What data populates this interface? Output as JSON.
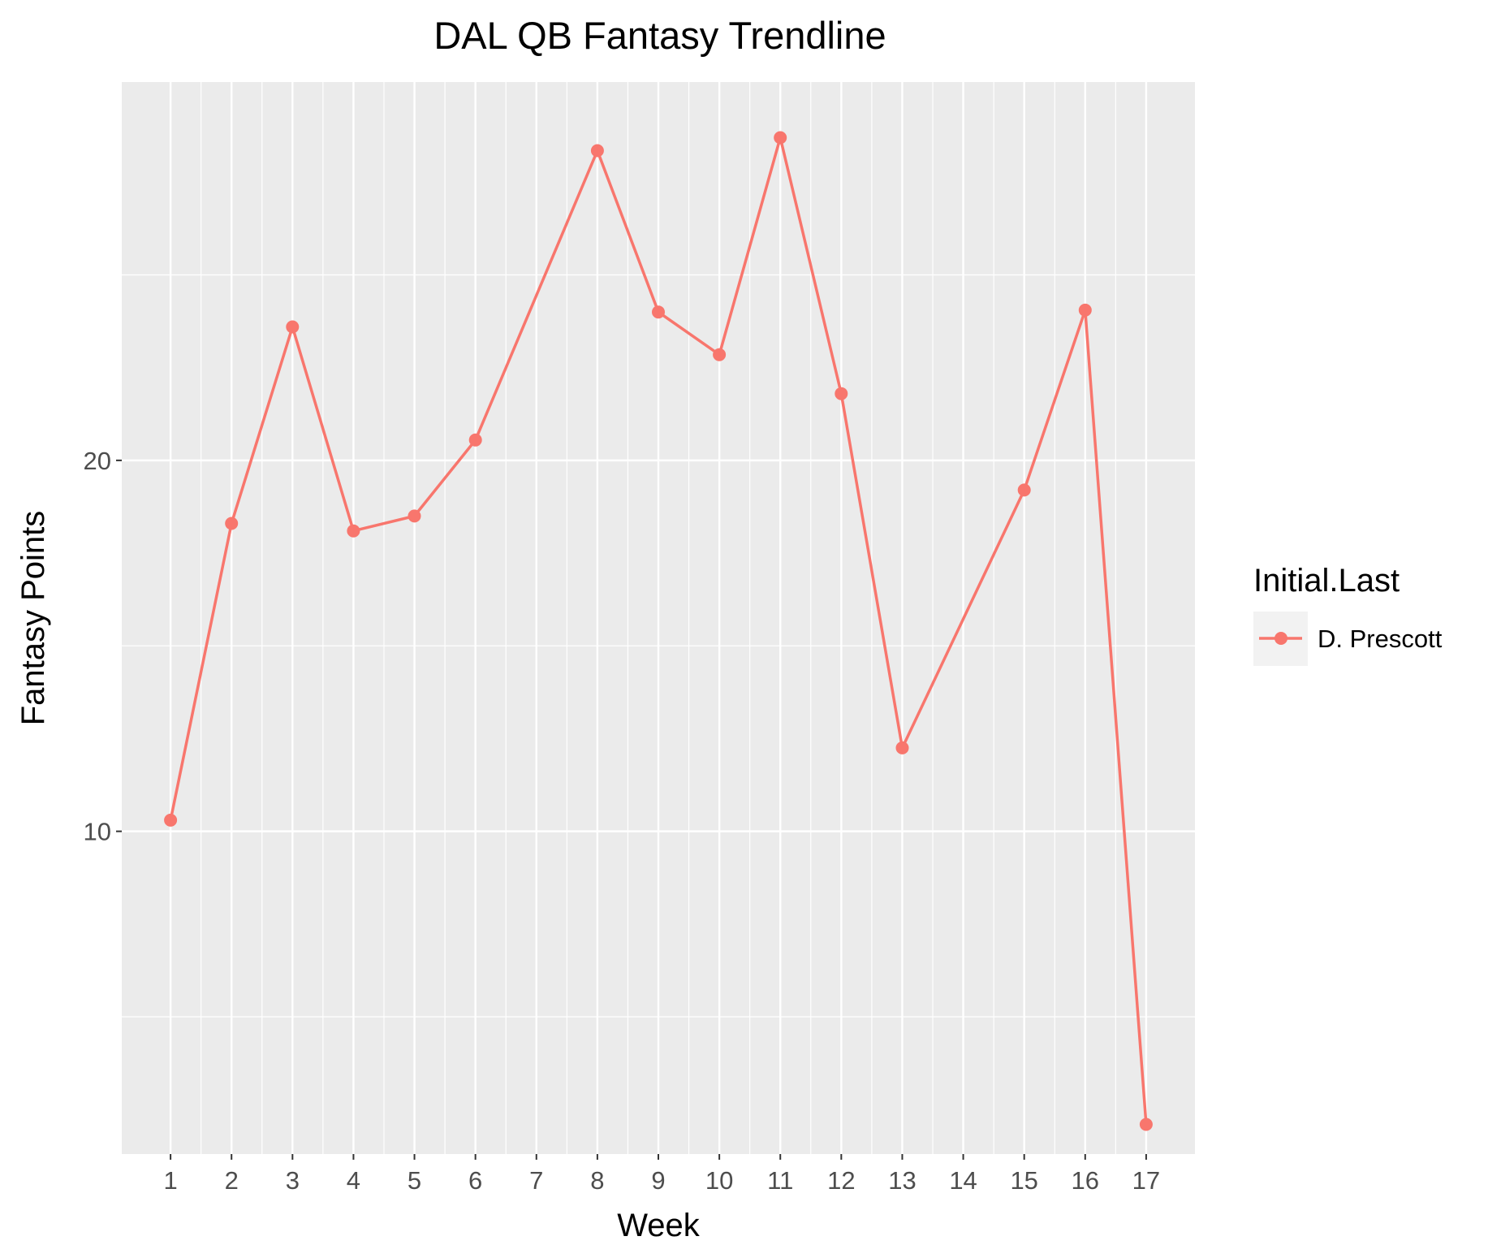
{
  "chart_data": {
    "type": "line",
    "title": "DAL QB Fantasy Trendline",
    "xlabel": "Week",
    "ylabel": "Fantasy Points",
    "x": [
      1,
      2,
      3,
      4,
      5,
      6,
      8,
      9,
      10,
      11,
      12,
      13,
      15,
      16,
      17
    ],
    "x_ticks": [
      "1",
      "2",
      "3",
      "4",
      "5",
      "6",
      "7",
      "8",
      "9",
      "10",
      "11",
      "12",
      "13",
      "14",
      "15",
      "16",
      "17"
    ],
    "y_ticks": [
      "10",
      "20"
    ],
    "y_tick_values": [
      10,
      20
    ],
    "xlim": [
      0.2,
      17.8
    ],
    "ylim": [
      1.3,
      30.2
    ],
    "grid": true,
    "series": [
      {
        "name": "D. Prescott",
        "values": [
          10.3,
          18.3,
          23.6,
          18.1,
          18.5,
          20.55,
          28.35,
          24.0,
          22.85,
          28.7,
          21.8,
          12.25,
          19.2,
          24.05,
          2.1
        ],
        "color": "#F8766D"
      }
    ],
    "legend": {
      "title": "Initial.Last",
      "position": "right"
    }
  }
}
